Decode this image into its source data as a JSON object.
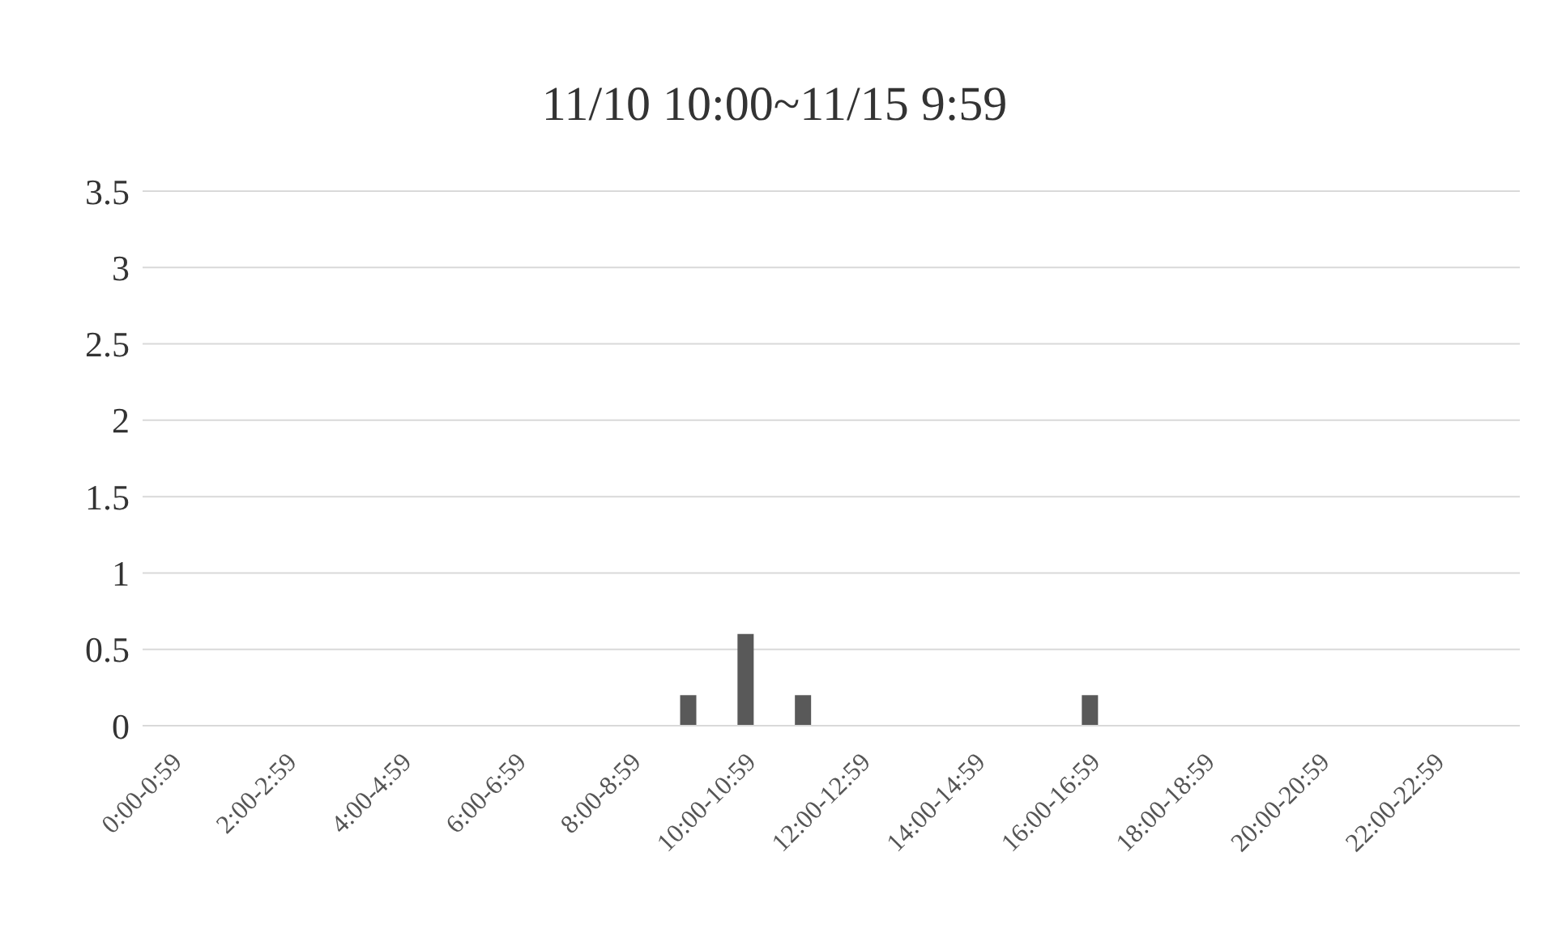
{
  "chart_data": {
    "type": "bar",
    "title": "11/10 10:00~11/15 9:59",
    "categories": [
      "0:00-0:59",
      null,
      "2:00-2:59",
      null,
      "4:00-4:59",
      null,
      "6:00-6:59",
      null,
      "8:00-8:59",
      null,
      "10:00-10:59",
      null,
      "12:00-12:59",
      null,
      "14:00-14:59",
      null,
      "16:00-16:59",
      null,
      "18:00-18:59",
      null,
      "20:00-20:59",
      null,
      "22:00-22:59",
      null
    ],
    "values": [
      0,
      0,
      0,
      0,
      0,
      0,
      0,
      0,
      0,
      0.2,
      0.6,
      0.2,
      0,
      0,
      0,
      0,
      0.2,
      0,
      0,
      0,
      0,
      0,
      0,
      0
    ],
    "color": "#595959",
    "ylim": [
      0,
      3.5
    ],
    "yticks": [
      0,
      0.5,
      1,
      1.5,
      2,
      2.5,
      3,
      3.5
    ],
    "grid": "y",
    "legend": false
  }
}
